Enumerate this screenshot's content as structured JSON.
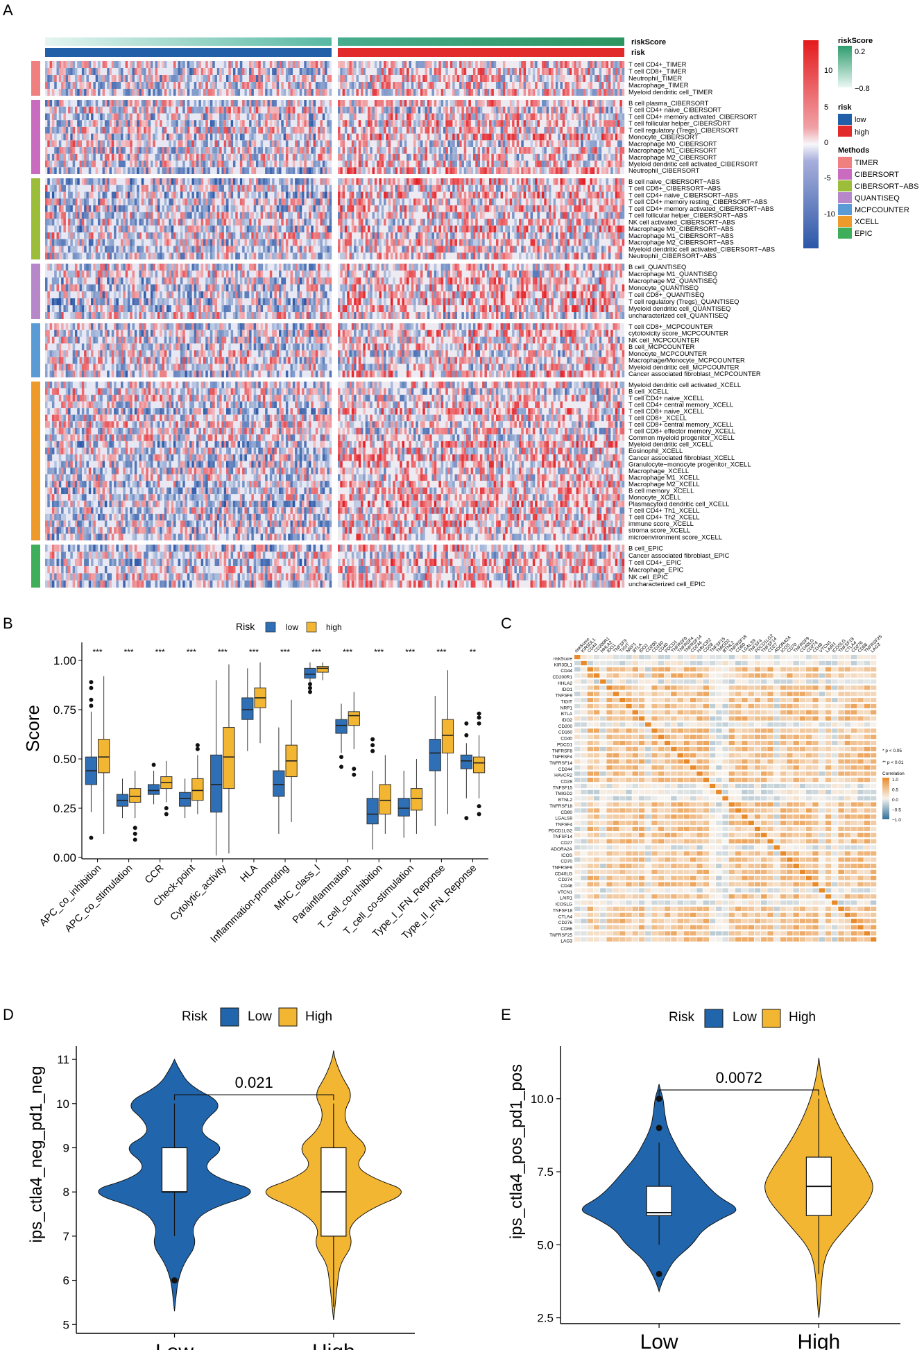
{
  "panels": {
    "A": "A",
    "B": "B",
    "C": "C",
    "D": "D",
    "E": "E"
  },
  "colors": {
    "low": "#2166ac",
    "high": "#e41a1c",
    "low_box": "#2f6fb5",
    "high_box": "#f2b632",
    "heat_low": "#2c5aa8",
    "heat_mid": "#f7f7fb",
    "heat_high": "#e8222b",
    "teal_light": "#d5efe9",
    "teal_dark": "#2e9c6e"
  },
  "heatmap": {
    "top_labels": [
      "riskScore",
      "risk"
    ],
    "colorbar_ticks": [
      "10",
      "5",
      "0",
      "-5",
      "-10"
    ],
    "legend": {
      "riskScore_title": "riskScore",
      "riskScore_high": "0.2",
      "riskScore_low": "−0.8",
      "risk_title": "risk",
      "risk_low": "low",
      "risk_high": "high",
      "methods_title": "Methods",
      "methods": [
        {
          "name": "TIMER",
          "color": "#f08080"
        },
        {
          "name": "CIBERSORT",
          "color": "#c96bbf"
        },
        {
          "name": "CIBERSORT−ABS",
          "color": "#9cbd3a"
        },
        {
          "name": "QUANTISEQ",
          "color": "#b688c9"
        },
        {
          "name": "MCPCOUNTER",
          "color": "#5b9bd5"
        },
        {
          "name": "XCELL",
          "color": "#ee9a2a"
        },
        {
          "name": "EPIC",
          "color": "#3fae5a"
        }
      ]
    },
    "groups": [
      {
        "method": "TIMER",
        "rows": [
          "T cell CD4+_TIMER",
          "T cell CD8+_TIMER",
          "Neutrophil_TIMER",
          "Macrophage_TIMER",
          "Myeloid dendritic cell_TIMER"
        ]
      },
      {
        "method": "CIBERSORT",
        "rows": [
          "B cell plasma_CIBERSORT",
          "T cell CD4+ naive_CIBERSORT",
          "T cell CD4+ memory activated_CIBERSORT",
          "T cell follicular helper_CIBERSORT",
          "T cell regulatory (Tregs)_CIBERSORT",
          "Monocyte_CIBERSORT",
          "Macrophage M0_CIBERSORT",
          "Macrophage M1_CIBERSORT",
          "Macrophage M2_CIBERSORT",
          "Myeloid dendritic cell activated_CIBERSORT",
          "Neutrophil_CIBERSORT"
        ]
      },
      {
        "method": "CIBERSORT−ABS",
        "rows": [
          "B cell naive_CIBERSORT−ABS",
          "T cell CD8+_CIBERSORT−ABS",
          "T cell CD4+ naive_CIBERSORT−ABS",
          "T cell CD4+ memory resting_CIBERSORT−ABS",
          "T cell CD4+ memory activated_CIBERSORT−ABS",
          "T cell follicular helper_CIBERSORT−ABS",
          "NK cell activated_CIBERSORT−ABS",
          "Macrophage M0_CIBERSORT−ABS",
          "Macrophage M1_CIBERSORT−ABS",
          "Macrophage M2_CIBERSORT−ABS",
          "Myeloid dendritic cell activated_CIBERSORT−ABS",
          "Neutrophil_CIBERSORT−ABS"
        ]
      },
      {
        "method": "QUANTISEQ",
        "rows": [
          "B cell_QUANTISEQ",
          "Macrophage M1_QUANTISEQ",
          "Macrophage M2_QUANTISEQ",
          "Monocyte_QUANTISEQ",
          "T cell CD8+_QUANTISEQ",
          "T cell regulatory (Tregs)_QUANTISEQ",
          "Myeloid dendritic cell_QUANTISEQ",
          "uncharacterized cell_QUANTISEQ"
        ]
      },
      {
        "method": "MCPCOUNTER",
        "rows": [
          "T cell CD8+_MCPCOUNTER",
          "cytotoxicity score_MCPCOUNTER",
          "NK cell_MCPCOUNTER",
          "B cell_MCPCOUNTER",
          "Monocyte_MCPCOUNTER",
          "Macrophage/Monocyte_MCPCOUNTER",
          "Myeloid dendritic cell_MCPCOUNTER",
          "Cancer associated fibroblast_MCPCOUNTER"
        ]
      },
      {
        "method": "XCELL",
        "rows": [
          "Myeloid dendritic cell activated_XCELL",
          "B cell_XCELL",
          "T cell CD4+ naive_XCELL",
          "T cell CD4+ central memory_XCELL",
          "T cell CD8+ naive_XCELL",
          "T cell CD8+_XCELL",
          "T cell CD8+ central memory_XCELL",
          "T cell CD8+ effector memory_XCELL",
          "Common myeloid progenitor_XCELL",
          "Myeloid dendritic cell_XCELL",
          "Eosinophil_XCELL",
          "Cancer associated fibroblast_XCELL",
          "Granulocyte−monocyte progenitor_XCELL",
          "Macrophage_XCELL",
          "Macrophage M1_XCELL",
          "Macrophage M2_XCELL",
          "B cell memory_XCELL",
          "Monocyte_XCELL",
          "Plasmacytoid dendritic cell_XCELL",
          "T cell CD4+ Th1_XCELL",
          "T cell CD4+ Th2_XCELL",
          "immune score_XCELL",
          "stroma score_XCELL",
          "microenvironment score_XCELL"
        ]
      },
      {
        "method": "EPIC",
        "rows": [
          "B cell_EPIC",
          "Cancer associated fibroblast_EPIC",
          "T cell CD4+_EPIC",
          "Macrophage_EPIC",
          "NK cell_EPIC",
          "uncharacterized cell_EPIC"
        ]
      }
    ]
  },
  "chart_data": [
    {
      "id": "B",
      "type": "box",
      "legend_title": "Risk",
      "legend": [
        "low",
        "high"
      ],
      "ylabel": "Score",
      "ylim": [
        0,
        1
      ],
      "yticks": [
        "0.00",
        "0.25",
        "0.50",
        "0.75",
        "1.00"
      ],
      "categories": [
        "APC_co_inhibition",
        "APC_co_stimulation",
        "CCR",
        "Check-point",
        "Cytolytic_activity",
        "HLA",
        "Inflammation-promoting",
        "MHC_class_I",
        "Parainflammation",
        "T_cell_co-inhibition",
        "T_cell_co-stimulation",
        "Type_I_IFN_Reponse",
        "Type_II_IFN_Reponse"
      ],
      "significance": [
        "***",
        "***",
        "***",
        "***",
        "***",
        "***",
        "***",
        "***",
        "***",
        "***",
        "***",
        "***",
        "**"
      ],
      "series": [
        {
          "name": "low",
          "boxes": [
            {
              "min": 0.23,
              "q1": 0.37,
              "med": 0.44,
              "q3": 0.51,
              "max": 0.74,
              "out": [
                0.1,
                0.77,
                0.8,
                0.86,
                0.89
              ]
            },
            {
              "min": 0.2,
              "q1": 0.26,
              "med": 0.29,
              "q3": 0.32,
              "max": 0.4
            },
            {
              "min": 0.27,
              "q1": 0.32,
              "med": 0.34,
              "q3": 0.37,
              "max": 0.44,
              "out": [
                0.47
              ]
            },
            {
              "min": 0.2,
              "q1": 0.26,
              "med": 0.3,
              "q3": 0.33,
              "max": 0.4
            },
            {
              "min": 0.01,
              "q1": 0.23,
              "med": 0.37,
              "q3": 0.52,
              "max": 0.9
            },
            {
              "min": 0.54,
              "q1": 0.7,
              "med": 0.75,
              "q3": 0.81,
              "max": 0.96
            },
            {
              "min": 0.12,
              "q1": 0.31,
              "med": 0.37,
              "q3": 0.44,
              "max": 0.66
            },
            {
              "min": 0.87,
              "q1": 0.91,
              "med": 0.93,
              "q3": 0.96,
              "max": 0.99,
              "out": [
                0.84,
                0.86,
                0.88
              ]
            },
            {
              "min": 0.53,
              "q1": 0.63,
              "med": 0.67,
              "q3": 0.7,
              "max": 0.78,
              "out": [
                0.46,
                0.51
              ]
            },
            {
              "min": 0.04,
              "q1": 0.17,
              "med": 0.22,
              "q3": 0.3,
              "max": 0.44,
              "out": [
                0.54,
                0.57,
                0.6
              ]
            },
            {
              "min": 0.1,
              "q1": 0.21,
              "med": 0.25,
              "q3": 0.3,
              "max": 0.44
            },
            {
              "min": 0.16,
              "q1": 0.44,
              "med": 0.53,
              "q3": 0.6,
              "max": 0.82
            },
            {
              "min": 0.3,
              "q1": 0.45,
              "med": 0.49,
              "q3": 0.52,
              "max": 0.58,
              "out": [
                0.2,
                0.62,
                0.68
              ]
            }
          ]
        },
        {
          "name": "high",
          "boxes": [
            {
              "min": 0.12,
              "q1": 0.43,
              "med": 0.51,
              "q3": 0.6,
              "max": 0.92
            },
            {
              "min": 0.2,
              "q1": 0.28,
              "med": 0.31,
              "q3": 0.35,
              "max": 0.44,
              "out": [
                0.09,
                0.12,
                0.15
              ]
            },
            {
              "min": 0.28,
              "q1": 0.35,
              "med": 0.38,
              "q3": 0.41,
              "max": 0.49,
              "out": [
                0.22,
                0.25
              ]
            },
            {
              "min": 0.22,
              "q1": 0.29,
              "med": 0.34,
              "q3": 0.4,
              "max": 0.52,
              "out": [
                0.55,
                0.57
              ]
            },
            {
              "min": 0.02,
              "q1": 0.35,
              "med": 0.51,
              "q3": 0.66,
              "max": 0.98
            },
            {
              "min": 0.58,
              "q1": 0.76,
              "med": 0.81,
              "q3": 0.86,
              "max": 0.99
            },
            {
              "min": 0.18,
              "q1": 0.41,
              "med": 0.49,
              "q3": 0.57,
              "max": 0.8
            },
            {
              "min": 0.9,
              "q1": 0.94,
              "med": 0.96,
              "q3": 0.97,
              "max": 0.99
            },
            {
              "min": 0.55,
              "q1": 0.67,
              "med": 0.72,
              "q3": 0.74,
              "max": 0.84,
              "out": [
                0.42,
                0.45
              ]
            },
            {
              "min": 0.12,
              "q1": 0.22,
              "med": 0.29,
              "q3": 0.37,
              "max": 0.52
            },
            {
              "min": 0.12,
              "q1": 0.24,
              "med": 0.3,
              "q3": 0.35,
              "max": 0.5
            },
            {
              "min": 0.22,
              "q1": 0.53,
              "med": 0.62,
              "q3": 0.7,
              "max": 0.95
            },
            {
              "min": 0.3,
              "q1": 0.43,
              "med": 0.48,
              "q3": 0.51,
              "max": 0.62,
              "out": [
                0.22,
                0.26,
                0.68,
                0.71,
                0.73
              ]
            }
          ]
        }
      ]
    },
    {
      "id": "C",
      "type": "correlation",
      "rows": [
        "riskScore",
        "KIR3DL1",
        "CD44",
        "CD200R1",
        "HHLA2",
        "IDO1",
        "TNFSF9",
        "TIGIT",
        "NRP1",
        "BTLA",
        "IDO2",
        "CD200",
        "CD160",
        "CD40",
        "PDCD1",
        "TNFRSF8",
        "TNFRSF4",
        "TNFRSF14",
        "CD244",
        "HAVCR2",
        "CD28",
        "TNFSF15",
        "TMIGD2",
        "BTNL2",
        "TNFRSF18",
        "CD80",
        "LGALS9",
        "TNFSF4",
        "PDCD1LG2",
        "TNFSF14",
        "CD27",
        "ADORA2A",
        "ICOS",
        "CD70",
        "TNFRSF9",
        "CD40LG",
        "CD274",
        "CD48",
        "VTCN1",
        "LAIR1",
        "ICOSLG",
        "TNFSF18",
        "CTLA4",
        "CD276",
        "CD86",
        "TNFRSF25",
        "LAG3"
      ],
      "legend_notes": [
        "* p < 0.05",
        "** p < 0.01"
      ],
      "legend_title": "Correlation",
      "legend_ticks": [
        "1.0",
        "0.5",
        "0.0",
        "−0.5",
        "−1.0"
      ],
      "range": [
        -1,
        1
      ]
    },
    {
      "id": "D",
      "type": "violin",
      "legend_title": "Risk",
      "legend": [
        "Low",
        "High"
      ],
      "ylabel": "ips_ctla4_neg_pd1_neg",
      "ylim": [
        4.8,
        11.3
      ],
      "yticks": [
        5,
        6,
        7,
        8,
        9,
        10,
        11
      ],
      "categories": [
        "Low",
        "High"
      ],
      "pvalue": "0.021",
      "boxes": [
        {
          "q1": 8,
          "med": 8,
          "q3": 9,
          "min": 7,
          "max": 10,
          "out": [
            6
          ]
        },
        {
          "q1": 7,
          "med": 8,
          "q3": 9,
          "min": 5.4,
          "max": 10,
          "out": []
        }
      ]
    },
    {
      "id": "E",
      "type": "violin",
      "legend_title": "Risk",
      "legend": [
        "Low",
        "High"
      ],
      "ylabel": "ips_ctla4_pos_pd1_pos",
      "ylim": [
        2.3,
        11.8
      ],
      "yticks": [
        "2.5",
        "5.0",
        "7.5",
        "10.0"
      ],
      "categories": [
        "Low",
        "High"
      ],
      "pvalue": "0.0072",
      "boxes": [
        {
          "q1": 6,
          "med": 6.1,
          "q3": 7,
          "min": 5,
          "max": 8.5,
          "out": [
            4,
            9,
            10
          ]
        },
        {
          "q1": 6,
          "med": 7,
          "q3": 8,
          "min": 4,
          "max": 10,
          "out": []
        }
      ]
    }
  ]
}
